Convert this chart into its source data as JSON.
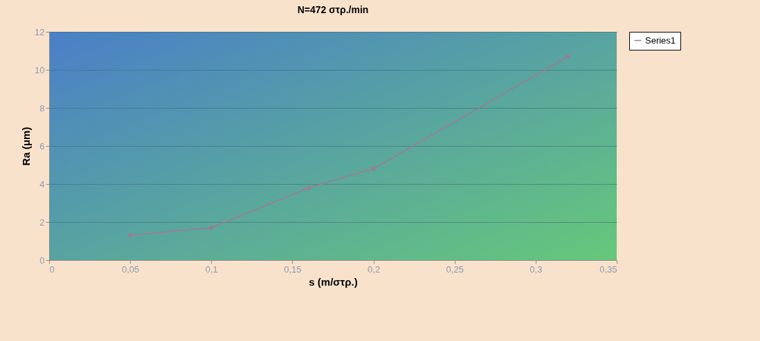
{
  "chart_data": {
    "type": "line",
    "title": "N=472 στρ./min",
    "xlabel": "s (m/στρ.)",
    "ylabel": "Ra (μm)",
    "x": [
      0.05,
      0.1,
      0.16,
      0.2,
      0.32
    ],
    "series": [
      {
        "name": "Series1",
        "color": "#a07a90",
        "values": [
          1.3,
          1.7,
          3.8,
          4.8,
          10.7
        ]
      }
    ],
    "xlim": [
      0,
      0.35
    ],
    "xticks": [
      0,
      {
        "value": 0.05,
        "label": "0,05"
      },
      {
        "value": 0.1,
        "label": "0,1"
      },
      {
        "value": 0.15,
        "label": "0,15"
      },
      {
        "value": 0.2,
        "label": "0,2"
      },
      {
        "value": 0.25,
        "label": "0,25"
      },
      {
        "value": 0.3,
        "label": "0,3"
      },
      {
        "value": 0.35,
        "label": "0,35"
      }
    ],
    "ylim": [
      0,
      12
    ],
    "yticks": [
      0,
      2,
      4,
      6,
      8,
      10,
      12
    ],
    "grid": "y",
    "legend": "top right",
    "marker": "diamond",
    "line_style": "solid"
  }
}
